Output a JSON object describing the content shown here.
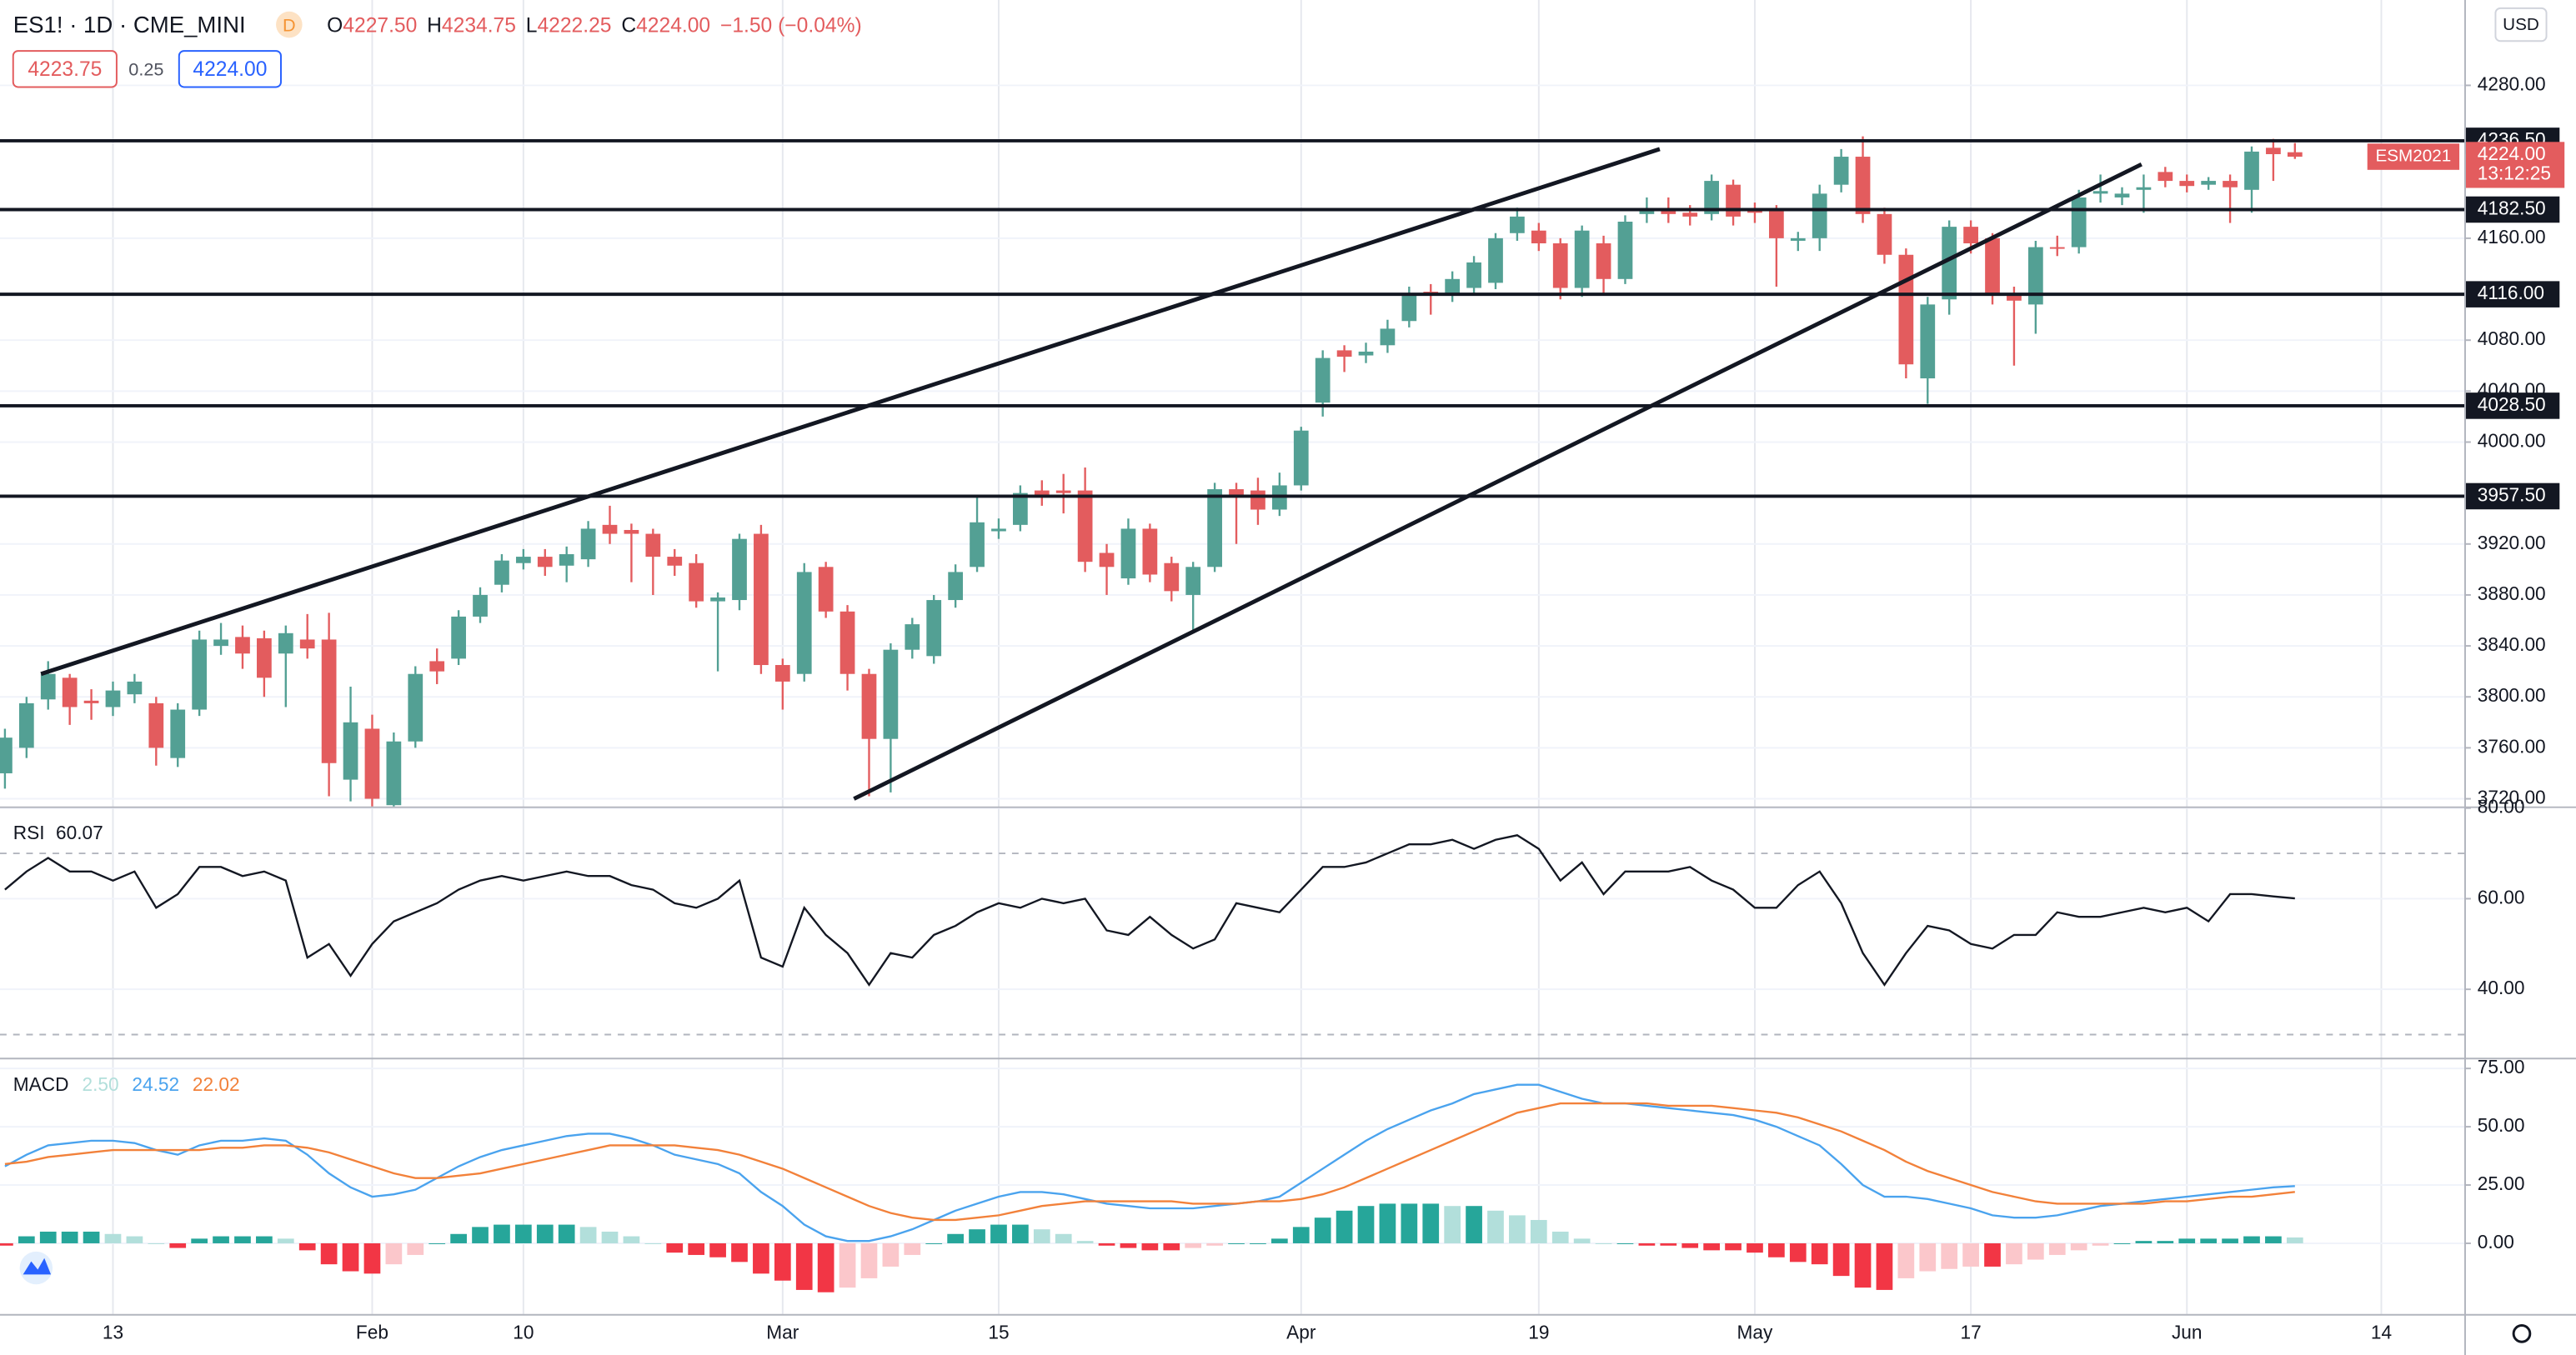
{
  "header": {
    "title": "ES1! · 1D · CME_MINI",
    "badge": "D",
    "ohlc": [
      {
        "label": "O",
        "value": "4227.50"
      },
      {
        "label": "H",
        "value": "4234.75"
      },
      {
        "label": "L",
        "value": "4222.25"
      },
      {
        "label": "C",
        "value": "4224.00"
      }
    ],
    "change": "−1.50 (−0.04%)",
    "bid": "4223.75",
    "spread": "0.25",
    "ask": "4224.00",
    "currency": "USD"
  },
  "chart_data": [
    {
      "type": "candlestick",
      "categories": [
        null,
        null,
        null,
        null,
        null,
        "13",
        null,
        null,
        null,
        null,
        null,
        null,
        null,
        null,
        null,
        null,
        null,
        "Feb",
        null,
        null,
        null,
        null,
        null,
        null,
        "10",
        null,
        null,
        null,
        null,
        null,
        null,
        null,
        null,
        null,
        null,
        null,
        "Mar",
        null,
        null,
        null,
        null,
        null,
        null,
        null,
        null,
        null,
        "15",
        null,
        null,
        null,
        null,
        null,
        null,
        null,
        null,
        null,
        null,
        null,
        null,
        null,
        "Apr",
        null,
        null,
        null,
        null,
        null,
        null,
        null,
        null,
        null,
        null,
        "19",
        null,
        null,
        null,
        null,
        null,
        null,
        null,
        null,
        null,
        "May",
        null,
        null,
        null,
        null,
        null,
        null,
        null,
        null,
        null,
        "17",
        null,
        null,
        null,
        null,
        null,
        null,
        null,
        null,
        null,
        "Jun",
        null,
        null,
        null,
        null,
        null,
        null,
        null,
        null,
        "14"
      ],
      "open": [
        3740,
        3760,
        3798,
        3815,
        3797,
        3792,
        3802,
        3795,
        3752,
        3790,
        3840,
        3847,
        3846,
        3834,
        3845,
        3845,
        3735,
        3775,
        3715,
        3765,
        3828,
        3830,
        3863,
        3888,
        3905,
        3910,
        3903,
        3908,
        3935,
        3931,
        3928,
        3910,
        3905,
        3875,
        3876,
        3928,
        3825,
        3818,
        3902,
        3867,
        3818,
        3767,
        3837,
        3832,
        3876,
        3902,
        3930,
        3935,
        3962,
        3962,
        3962,
        3913,
        3893,
        3932,
        3905,
        3880,
        3902,
        3963,
        3962,
        3947,
        3966,
        4031,
        4072,
        4068,
        4076,
        4095,
        4118,
        4117,
        4121,
        4125,
        4164,
        4166,
        4156,
        4121,
        4156,
        4128,
        4179,
        4182,
        4180,
        4179,
        4202,
        4182,
        4182,
        4158,
        4160,
        4202,
        4224,
        4179,
        4147,
        4050,
        4112,
        4169,
        4160,
        4115,
        4108,
        4153,
        4153,
        4195,
        4192,
        4198,
        4212,
        4205,
        4202,
        4205,
        4198,
        4231,
        4227.5,
        null,
        null,
        null,
        null
      ],
      "high": [
        3775,
        3800,
        3828,
        3818,
        3806,
        3812,
        3818,
        3800,
        3795,
        3852,
        3858,
        3856,
        3852,
        3856,
        3865,
        3866,
        3808,
        3786,
        3772,
        3824,
        3838,
        3868,
        3886,
        3912,
        3916,
        3916,
        3918,
        3938,
        3950,
        3936,
        3932,
        3916,
        3912,
        3882,
        3928,
        3935,
        3830,
        3905,
        3906,
        3872,
        3822,
        3842,
        3862,
        3880,
        3904,
        3958,
        3940,
        3966,
        3970,
        3975,
        3980,
        3920,
        3940,
        3936,
        3910,
        3906,
        3968,
        3968,
        3972,
        3976,
        4012,
        4072,
        4076,
        4078,
        4096,
        4122,
        4124,
        4134,
        4146,
        4164,
        4184,
        4172,
        4160,
        4170,
        4162,
        4178,
        4192,
        4192,
        4186,
        4210,
        4206,
        4188,
        4186,
        4165,
        4202,
        4230,
        4240,
        4184,
        4152,
        4114,
        4174,
        4174,
        4164,
        4122,
        4158,
        4162,
        4198,
        4210,
        4200,
        4210,
        4216,
        4210,
        4208,
        4210,
        4232,
        4238,
        4234.75,
        null,
        null,
        null,
        null
      ],
      "low": [
        3728,
        3752,
        3790,
        3778,
        3782,
        3785,
        3795,
        3746,
        3745,
        3785,
        3833,
        3822,
        3800,
        3792,
        3830,
        3722,
        3718,
        3712,
        3712,
        3760,
        3810,
        3825,
        3858,
        3882,
        3900,
        3895,
        3890,
        3902,
        3920,
        3890,
        3880,
        3895,
        3870,
        3820,
        3868,
        3818,
        3790,
        3812,
        3862,
        3805,
        3722,
        3725,
        3830,
        3826,
        3870,
        3898,
        3924,
        3930,
        3950,
        3944,
        3898,
        3880,
        3888,
        3890,
        3875,
        3850,
        3898,
        3920,
        3935,
        3942,
        3962,
        4020,
        4055,
        4062,
        4070,
        4090,
        4100,
        4110,
        4116,
        4120,
        4158,
        4150,
        4112,
        4114,
        4115,
        4124,
        4172,
        4172,
        4170,
        4174,
        4170,
        4172,
        4122,
        4150,
        4150,
        4196,
        4172,
        4140,
        4050,
        4030,
        4100,
        4148,
        4108,
        4060,
        4085,
        4146,
        4148,
        4188,
        4186,
        4180,
        4200,
        4196,
        4198,
        4172,
        4180,
        4205,
        4222.25,
        null,
        null,
        null,
        null
      ],
      "close": [
        3768,
        3795,
        3818,
        3792,
        3795,
        3805,
        3812,
        3760,
        3790,
        3845,
        3845,
        3834,
        3815,
        3850,
        3838,
        3748,
        3780,
        3720,
        3765,
        3818,
        3820,
        3863,
        3880,
        3907,
        3910,
        3902,
        3912,
        3932,
        3928,
        3928,
        3910,
        3903,
        3875,
        3878,
        3924,
        3825,
        3812,
        3898,
        3867,
        3818,
        3767,
        3837,
        3857,
        3876,
        3898,
        3937,
        3932,
        3960,
        3958,
        3960,
        3906,
        3902,
        3932,
        3896,
        3883,
        3902,
        3963,
        3958,
        3947,
        3966,
        4009,
        4066,
        4067,
        4071,
        4089,
        4117,
        4116,
        4128,
        4141,
        4160,
        4177,
        4156,
        4121,
        4166,
        4128,
        4173,
        4182,
        4179,
        4177,
        4205,
        4177,
        4180,
        4160,
        4160,
        4195,
        4224,
        4179,
        4147,
        4061,
        4108,
        4169,
        4156,
        4117,
        4111,
        4153,
        4152,
        4192,
        4197,
        4195,
        4200,
        4205,
        4201,
        4205,
        4200,
        4228,
        4226,
        4224,
        null,
        null,
        null,
        null
      ],
      "up_color": "#53a094",
      "down_color": "#e35c5e",
      "ylim": [
        3714,
        4347
      ],
      "yticks": [
        {
          "value": 4280,
          "label": "4280.00"
        },
        {
          "value": 4160,
          "label": "4160.00"
        },
        {
          "value": 4080,
          "label": "4080.00"
        },
        {
          "value": 4040,
          "label": "4040.00"
        },
        {
          "value": 4000,
          "label": "4000.00"
        },
        {
          "value": 3920,
          "label": "3920.00"
        },
        {
          "value": 3880,
          "label": "3880.00"
        },
        {
          "value": 3840,
          "label": "3840.00"
        },
        {
          "value": 3800,
          "label": "3800.00"
        },
        {
          "value": 3760,
          "label": "3760.00"
        },
        {
          "value": 3720,
          "label": "3720.00"
        }
      ],
      "levels": [
        {
          "value": 4236.5,
          "label": "4236.50"
        },
        {
          "value": 4182.5,
          "label": "4182.50"
        },
        {
          "value": 4116,
          "label": "4116.00"
        },
        {
          "value": 4028.5,
          "label": "4028.50"
        },
        {
          "value": 3957.5,
          "label": "3957.50"
        }
      ],
      "trend_lines": [
        {
          "x": [
            1.67,
            76.6
          ],
          "y": [
            3818,
            4230
          ]
        },
        {
          "x": [
            39.3,
            98.9
          ],
          "y": [
            3720,
            4218
          ]
        }
      ],
      "last_price": {
        "value": 4224,
        "label": "4224.00",
        "countdown": "13:12:25",
        "contract": "ESM2021"
      }
    },
    {
      "type": "line",
      "title": "RSI",
      "header_values": [
        "60.07"
      ],
      "color": "#131722",
      "values": [
        62,
        66,
        69,
        66,
        66,
        64,
        66,
        58,
        61,
        67,
        67,
        65,
        66,
        64,
        47,
        50,
        43,
        50,
        55,
        57,
        59,
        62,
        64,
        65,
        64,
        65,
        66,
        65,
        65,
        63,
        62,
        59,
        58,
        60,
        64,
        47,
        45,
        58,
        52,
        48,
        41,
        48,
        47,
        52,
        54,
        57,
        59,
        58,
        60,
        59,
        60,
        53,
        52,
        56,
        52,
        49,
        51,
        59,
        58,
        57,
        62,
        67,
        67,
        68,
        70,
        72,
        72,
        73,
        71,
        73,
        74,
        71,
        64,
        68,
        61,
        66,
        66,
        66,
        67,
        64,
        62,
        58,
        58,
        63,
        66,
        59,
        48,
        41,
        48,
        54,
        53,
        50,
        49,
        52,
        52,
        57,
        56,
        56,
        57,
        58,
        57,
        58,
        55,
        61,
        61,
        60.5,
        60.07,
        null,
        null,
        null,
        null
      ],
      "bands": [
        70,
        30
      ],
      "ylim": [
        24.9,
        80
      ],
      "yticks": [
        {
          "value": 80,
          "label": "80.00"
        },
        {
          "value": 60,
          "label": "60.00"
        },
        {
          "value": 40,
          "label": "40.00"
        }
      ]
    },
    {
      "type": "macd",
      "title": "MACD",
      "header_values": [
        "2.50",
        "24.52",
        "22.02"
      ],
      "series": [
        {
          "color": "#4aa3ee",
          "values": [
            33,
            38,
            42,
            43,
            44,
            44,
            43,
            40,
            38,
            42,
            44,
            44,
            45,
            44,
            38,
            30,
            24,
            20,
            21,
            23,
            28,
            33,
            37,
            40,
            42,
            44,
            46,
            47,
            47,
            45,
            42,
            38,
            36,
            34,
            30,
            22,
            16,
            8,
            3,
            1,
            1,
            3,
            6,
            10,
            14,
            17,
            20,
            22,
            22,
            21,
            19,
            17,
            16,
            15,
            15,
            15,
            16,
            17,
            18,
            20,
            26,
            32,
            38,
            44,
            49,
            53,
            57,
            60,
            64,
            66,
            68,
            68,
            65,
            62,
            60,
            60,
            59,
            58,
            57,
            56,
            55,
            53,
            50,
            46,
            42,
            34,
            25,
            20,
            20,
            19,
            17,
            15,
            12,
            11,
            11,
            12,
            14,
            16,
            17,
            18,
            19,
            20,
            21,
            22,
            23,
            24,
            24.52,
            null,
            null,
            null,
            null
          ]
        },
        {
          "color": "#f2813a",
          "values": [
            34,
            35,
            37,
            38,
            39,
            40,
            40,
            40,
            40,
            40,
            41,
            41,
            42,
            42,
            41,
            39,
            36,
            33,
            30,
            28,
            28,
            29,
            30,
            32,
            34,
            36,
            38,
            40,
            42,
            42,
            42,
            42,
            41,
            40,
            38,
            35,
            32,
            28,
            24,
            20,
            16,
            13,
            11,
            10,
            10,
            11,
            12,
            14,
            16,
            17,
            18,
            18,
            18,
            18,
            18,
            17,
            17,
            17,
            18,
            18,
            19,
            21,
            24,
            28,
            32,
            36,
            40,
            44,
            48,
            52,
            56,
            58,
            60,
            60,
            60,
            60,
            60,
            59,
            59,
            59,
            58,
            57,
            56,
            54,
            51,
            48,
            44,
            40,
            35,
            31,
            28,
            25,
            22,
            20,
            18,
            17,
            17,
            17,
            17,
            17,
            18,
            18,
            19,
            20,
            20,
            21,
            22.02,
            null,
            null,
            null,
            null
          ]
        }
      ],
      "histogram": {
        "values": [
          -1,
          3,
          5,
          5,
          5,
          4,
          3,
          0,
          -2,
          2,
          3,
          3,
          3,
          2,
          -3,
          -9,
          -12,
          -13,
          -9,
          -5,
          0,
          4,
          7,
          8,
          8,
          8,
          8,
          7,
          5,
          3,
          0,
          -4,
          -5,
          -6,
          -8,
          -13,
          -16,
          -20,
          -21,
          -19,
          -15,
          -10,
          -5,
          0,
          4,
          6,
          8,
          8,
          6,
          4,
          1,
          -1,
          -2,
          -3,
          -3,
          -2,
          -1,
          0,
          0,
          2,
          7,
          11,
          14,
          16,
          17,
          17,
          17,
          16,
          16,
          14,
          12,
          10,
          5,
          2,
          0,
          0,
          -1,
          -1,
          -2,
          -3,
          -3,
          -4,
          -6,
          -8,
          -9,
          -14,
          -19,
          -20,
          -15,
          -12,
          -11,
          -10,
          -10,
          -9,
          -7,
          -5,
          -3,
          -1,
          0,
          1,
          1,
          2,
          2,
          2,
          3,
          3,
          2.5,
          null,
          null,
          null,
          null
        ],
        "colors": [
          "#26a69a",
          "#b2dfdb",
          "#f23645",
          "#fbc7cb"
        ]
      },
      "ylim": [
        -30.3,
        78.9
      ],
      "yticks": [
        {
          "value": 75,
          "label": "75.00"
        },
        {
          "value": 50,
          "label": "50.00"
        },
        {
          "value": 25,
          "label": "25.00"
        },
        {
          "value": 0,
          "label": "0.00"
        }
      ]
    }
  ]
}
